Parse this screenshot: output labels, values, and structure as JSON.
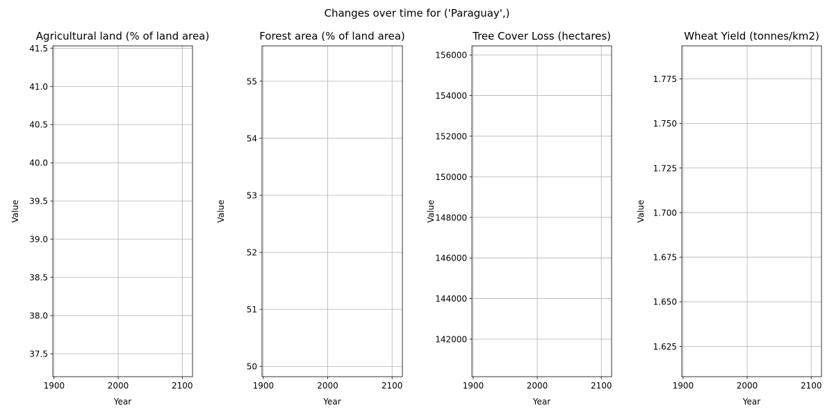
{
  "figure": {
    "suptitle": "Changes over time for ('Paraguay',)"
  },
  "chart_data": [
    {
      "type": "line",
      "title": "Agricultural land (% of land area)",
      "xlabel": "Year",
      "ylabel": "Value",
      "xlim": [
        1898,
        2116
      ],
      "ylim": [
        37.2,
        41.53
      ],
      "xticks": [
        1900,
        2000,
        2100
      ],
      "yticks": [
        37.5,
        38.0,
        38.5,
        39.0,
        39.5,
        40.0,
        40.5,
        41.0,
        41.5
      ],
      "ytick_labels": [
        "37.5",
        "38.0",
        "38.5",
        "39.0",
        "39.5",
        "40.0",
        "40.5",
        "41.0",
        "41.5"
      ],
      "grid": true,
      "series": []
    },
    {
      "type": "line",
      "title": "Forest area (% of land area)",
      "xlabel": "Year",
      "ylabel": "Value",
      "xlim": [
        1898,
        2116
      ],
      "ylim": [
        49.82,
        55.62
      ],
      "xticks": [
        1900,
        2000,
        2100
      ],
      "yticks": [
        50,
        51,
        52,
        53,
        54,
        55
      ],
      "ytick_labels": [
        "50",
        "51",
        "52",
        "53",
        "54",
        "55"
      ],
      "grid": true,
      "series": []
    },
    {
      "type": "line",
      "title": "Tree Cover Loss (hectares)",
      "xlabel": "Year",
      "ylabel": "Value",
      "xlim": [
        1898,
        2116
      ],
      "ylim": [
        140150,
        156450
      ],
      "xticks": [
        1900,
        2000,
        2100
      ],
      "yticks": [
        142000,
        144000,
        146000,
        148000,
        150000,
        152000,
        154000,
        156000
      ],
      "ytick_labels": [
        "142000",
        "144000",
        "146000",
        "148000",
        "150000",
        "152000",
        "154000",
        "156000"
      ],
      "grid": true,
      "series": []
    },
    {
      "type": "line",
      "title": "Wheat Yield (tonnes/km2)",
      "xlabel": "Year",
      "ylabel": "Value",
      "xlim": [
        1898,
        2116
      ],
      "ylim": [
        1.608,
        1.7935
      ],
      "xticks": [
        1900,
        2000,
        2100
      ],
      "yticks": [
        1.625,
        1.65,
        1.675,
        1.7,
        1.725,
        1.75,
        1.775
      ],
      "ytick_labels": [
        "1.625",
        "1.650",
        "1.675",
        "1.700",
        "1.725",
        "1.750",
        "1.775"
      ],
      "grid": true,
      "series": []
    }
  ]
}
